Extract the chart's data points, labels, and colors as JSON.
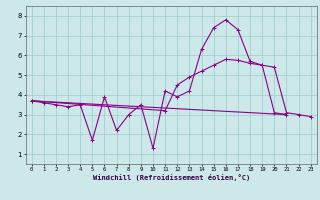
{
  "xlabel": "Windchill (Refroidissement éolien,°C)",
  "bg_color": "#cce8e8",
  "grid_color": "#99cccc",
  "line_color": "#880088",
  "xlim": [
    -0.5,
    23.5
  ],
  "ylim": [
    0.5,
    8.5
  ],
  "yticks": [
    1,
    2,
    3,
    4,
    5,
    6,
    7,
    8
  ],
  "xticks": [
    0,
    1,
    2,
    3,
    4,
    5,
    6,
    7,
    8,
    9,
    10,
    11,
    12,
    13,
    14,
    15,
    16,
    17,
    18,
    19,
    20,
    21,
    22,
    23
  ],
  "line1_x": [
    0,
    1,
    2,
    3,
    4,
    5,
    6,
    7,
    8,
    9,
    10,
    11,
    12,
    13,
    14,
    15,
    16,
    17,
    18,
    19,
    20,
    21
  ],
  "line1_y": [
    3.7,
    3.6,
    3.5,
    3.4,
    3.5,
    1.7,
    3.9,
    2.2,
    3.0,
    3.5,
    1.3,
    4.2,
    3.9,
    4.2,
    6.3,
    7.4,
    7.8,
    7.3,
    5.7,
    5.5,
    3.1,
    3.0
  ],
  "line2_x": [
    0,
    21
  ],
  "line2_y": [
    3.7,
    3.0
  ],
  "line3_x": [
    0,
    11,
    12,
    13,
    14,
    15,
    16,
    17,
    18,
    19,
    20,
    21,
    22,
    23
  ],
  "line3_y": [
    3.7,
    3.2,
    4.5,
    4.9,
    5.2,
    5.5,
    5.8,
    5.75,
    5.6,
    5.5,
    5.4,
    3.1,
    3.0,
    2.9
  ]
}
